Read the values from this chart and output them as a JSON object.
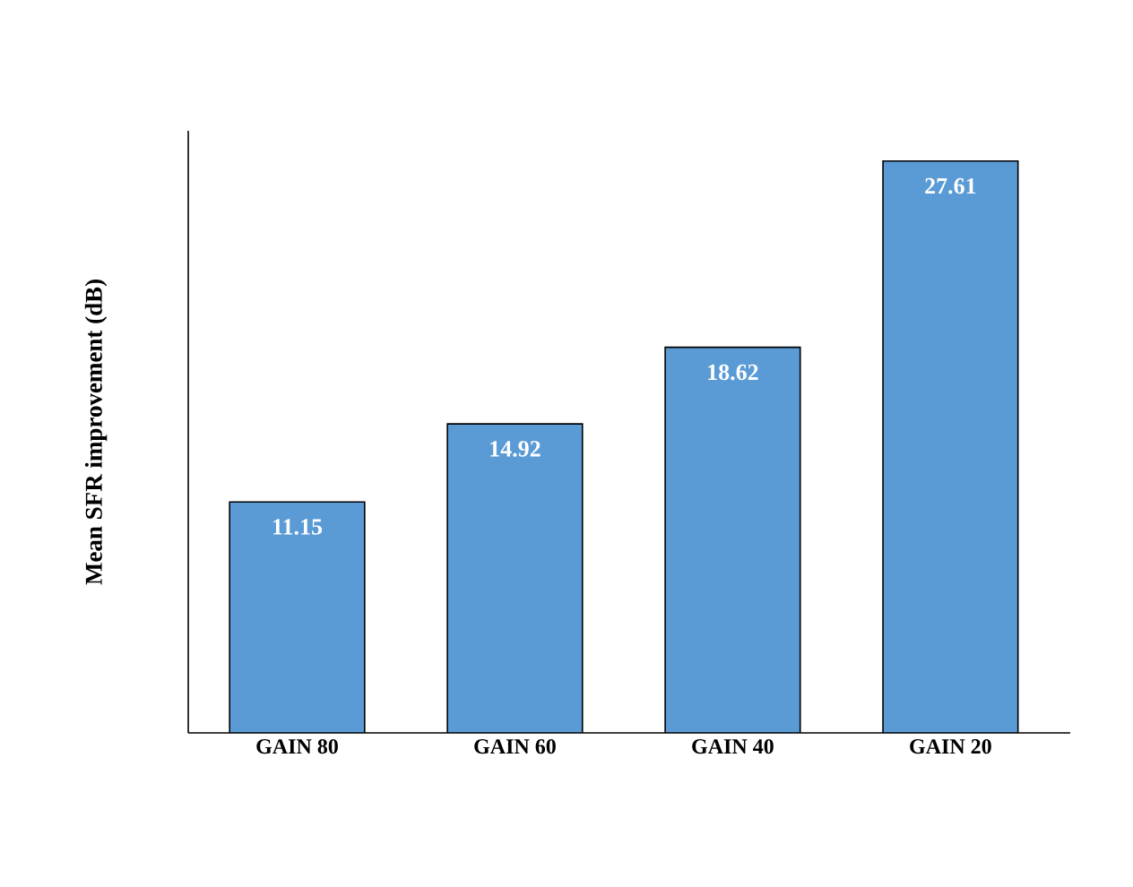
{
  "chart_data": {
    "type": "bar",
    "ylabel": "Mean SFR improvement (dB)",
    "categories": [
      "GAIN 80",
      "GAIN 60",
      "GAIN 40",
      "GAIN 20"
    ],
    "values": [
      11.15,
      14.92,
      18.62,
      27.61
    ],
    "color": "#5b9bd5",
    "data_labels": true,
    "tick_labels": "x",
    "grid": false
  }
}
